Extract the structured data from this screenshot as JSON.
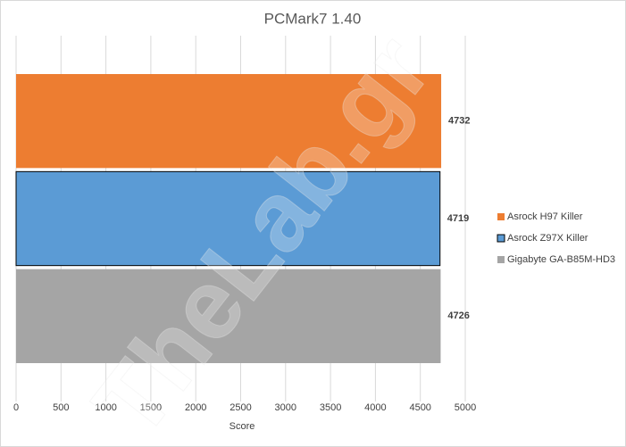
{
  "chart_data": {
    "type": "barh",
    "title": "PCMark7 1.40",
    "x_label": "Score",
    "watermark": "TheLab.gr",
    "categories": [
      null
    ],
    "series": [
      {
        "name": "Asrock H97 Killer",
        "color": "#ed7d31",
        "values": [
          4732
        ]
      },
      {
        "name": "Asrock Z97X Killer",
        "color": "#5b9bd5",
        "edgecolor": "#000000",
        "values": [
          4719
        ]
      },
      {
        "name": "Gigabyte GA-B85M-HD3",
        "color": "#a5a5a5",
        "values": [
          4726
        ]
      }
    ],
    "xlim": [
      0,
      5000
    ],
    "xticks": [
      0,
      500,
      1000,
      1500,
      2000,
      2500,
      3000,
      3500,
      4000,
      4500,
      5000
    ],
    "grid": true,
    "legend": "right"
  }
}
